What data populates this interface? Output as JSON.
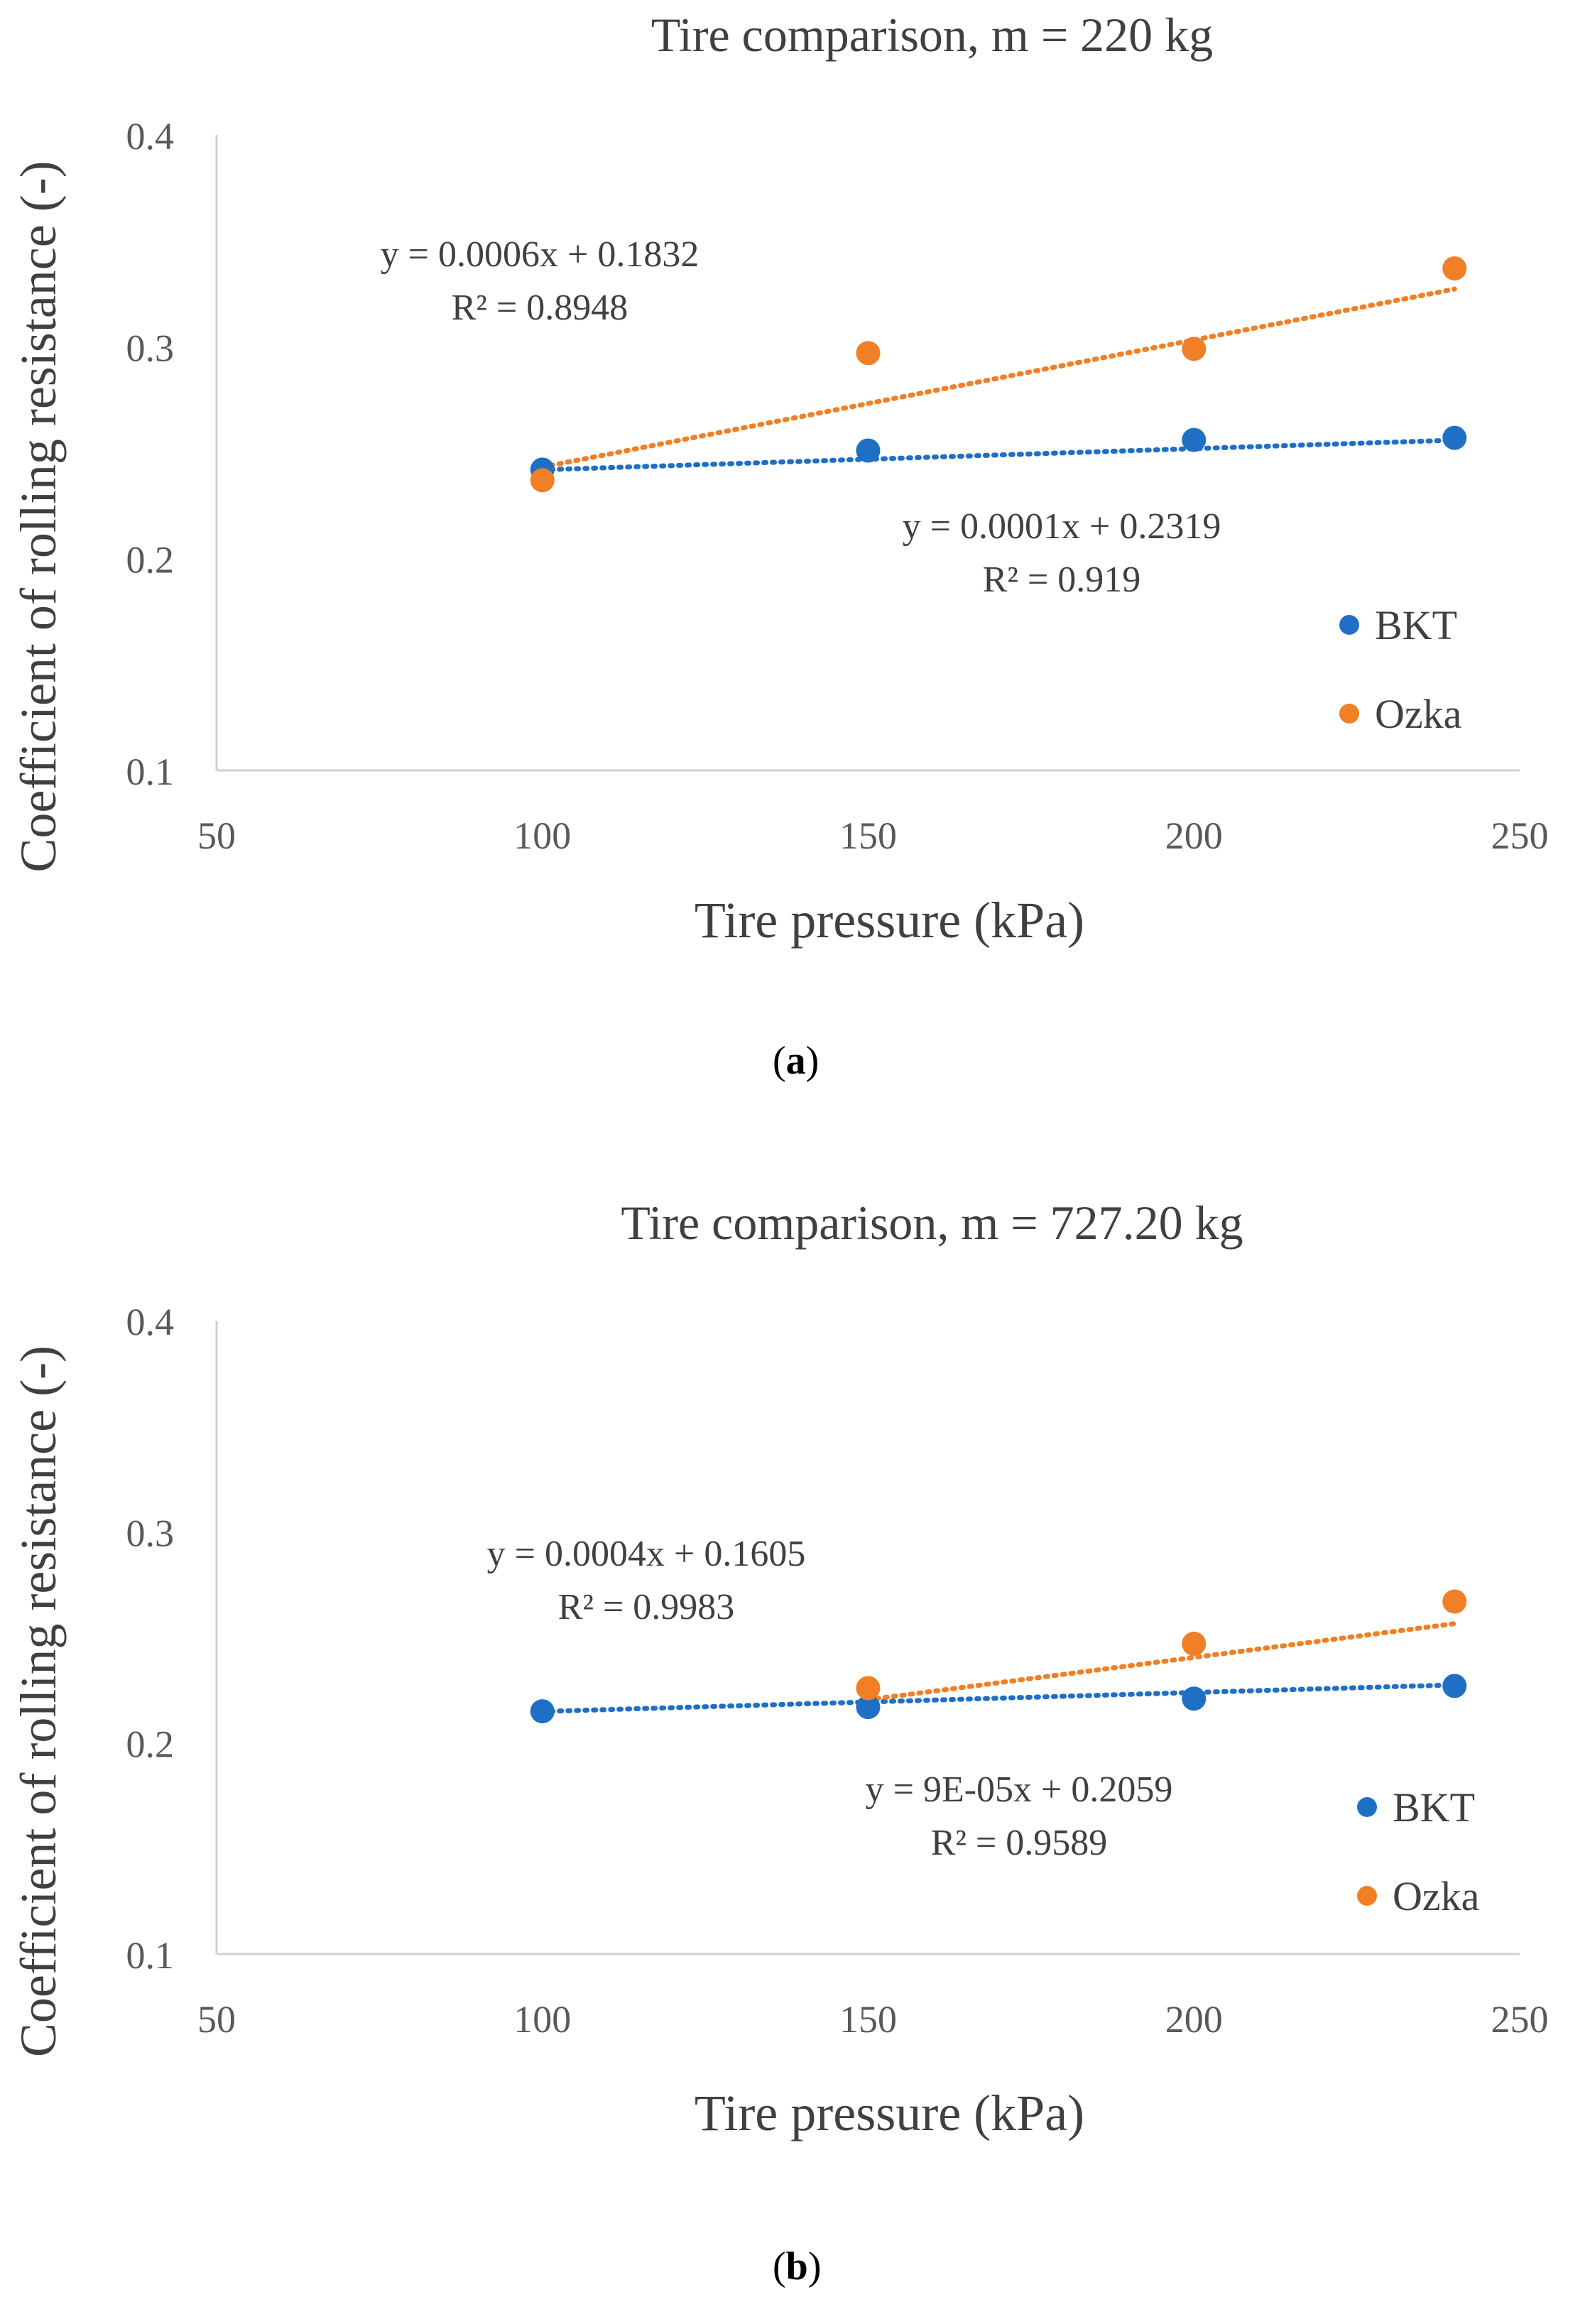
{
  "chart_data": [
    {
      "type": "scatter",
      "panel_label": "a",
      "title": "Tire comparison, m = 220 kg",
      "xlabel": "Tire pressure (kPa)",
      "ylabel": "Coefficient of rolling resistance (-)",
      "xlim": [
        50,
        250
      ],
      "ylim": [
        0.1,
        0.4
      ],
      "xticks": [
        50,
        100,
        150,
        200,
        250
      ],
      "yticks": [
        0.1,
        0.2,
        0.3,
        0.4
      ],
      "ytick_labels": [
        "0.1",
        "0.2",
        "0.3",
        "0.4"
      ],
      "grid": false,
      "legend": "right",
      "series": [
        {
          "name": "BKT",
          "color": "#1F6FC5",
          "x": [
            100,
            150,
            200,
            240
          ],
          "y": [
            0.242,
            0.251,
            0.256,
            0.257
          ],
          "trendline": {
            "type": "linear",
            "slope": 0.0001,
            "intercept": 0.2319,
            "equation": "y = 0.0001x + 0.2319",
            "r2": "R² = 0.919"
          }
        },
        {
          "name": "Ozka",
          "color": "#F07F26",
          "x": [
            100,
            150,
            200,
            240
          ],
          "y": [
            0.237,
            0.297,
            0.299,
            0.337
          ],
          "trendline": {
            "type": "linear",
            "slope": 0.0006,
            "intercept": 0.1832,
            "equation": "y = 0.0006x + 0.1832",
            "r2": "R² = 0.8948"
          }
        }
      ]
    },
    {
      "type": "scatter",
      "panel_label": "b",
      "title": "Tire comparison, m = 727.20 kg",
      "xlabel": "Tire pressure (kPa)",
      "ylabel": "Coefficient of rolling resistance (-)",
      "xlim": [
        50,
        250
      ],
      "ylim": [
        0.1,
        0.4
      ],
      "xticks": [
        50,
        100,
        150,
        200,
        250
      ],
      "yticks": [
        0.1,
        0.2,
        0.3,
        0.4
      ],
      "ytick_labels": [
        "0.1",
        "0.2",
        "0.3",
        "0.4"
      ],
      "grid": false,
      "legend": "right",
      "series": [
        {
          "name": "BKT",
          "color": "#1F6FC5",
          "x": [
            100,
            150,
            200,
            240
          ],
          "y": [
            0.215,
            0.217,
            0.221,
            0.227
          ],
          "trendline": {
            "type": "linear",
            "slope": 9e-05,
            "intercept": 0.2059,
            "equation": "y = 9E-05x + 0.2059",
            "r2": "R² = 0.9589"
          }
        },
        {
          "name": "Ozka",
          "color": "#F07F26",
          "x": [
            150,
            200,
            240
          ],
          "y": [
            0.226,
            0.247,
            0.267
          ],
          "trendline": {
            "type": "linear",
            "slope": 0.0004,
            "intercept": 0.1605,
            "equation": "y = 0.0004x + 0.1605",
            "r2": "R² = 0.9983"
          }
        }
      ]
    }
  ]
}
